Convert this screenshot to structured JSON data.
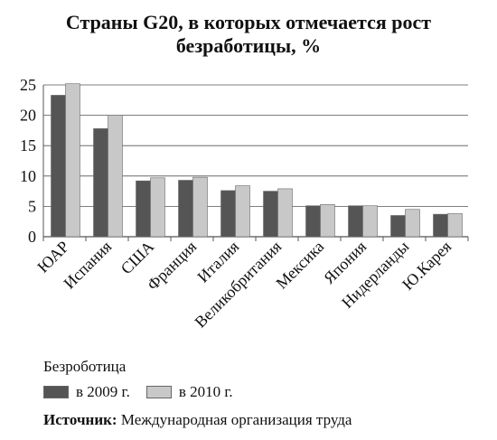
{
  "title_line1": "Страны G20, в которых отмечается рост",
  "title_line2": "безработицы, %",
  "legend": {
    "title": "Безроботица",
    "items": [
      "в 2009 г.",
      "в 2010 г."
    ]
  },
  "source": {
    "label": "Источник:",
    "text": "Международная организация труда"
  },
  "colors": {
    "series2009": "#555555",
    "series2010": "#c8c8c8",
    "axis": "#555555",
    "grid": "#555555"
  },
  "chart_data": {
    "type": "bar",
    "categories": [
      "ЮАР",
      "Испания",
      "США",
      "Франция",
      "Италия",
      "Великобритания",
      "Мексика",
      "Япония",
      "Нидерланды",
      "Ю.Карея"
    ],
    "series": [
      {
        "name": "в 2009 г.",
        "values": [
          23.3,
          17.8,
          9.2,
          9.3,
          7.6,
          7.5,
          5.1,
          5.1,
          3.5,
          3.7
        ]
      },
      {
        "name": "в 2010 г.",
        "values": [
          25.2,
          20.0,
          9.7,
          9.8,
          8.4,
          7.9,
          5.3,
          5.1,
          4.5,
          3.8
        ]
      }
    ],
    "yticks": [
      "0",
      "5",
      "10",
      "15",
      "20",
      "25"
    ],
    "ylim": [
      0,
      25
    ],
    "grid": true,
    "legend_position": "bottom-left"
  }
}
